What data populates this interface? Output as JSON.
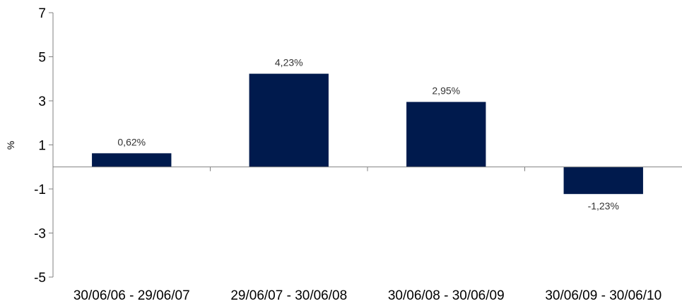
{
  "chart_data": {
    "type": "bar",
    "categories": [
      "30/06/06 - 29/06/07",
      "29/06/07 - 30/06/08",
      "30/06/08 - 30/06/09",
      "30/06/09 - 30/06/10"
    ],
    "values": [
      0.62,
      4.23,
      2.95,
      -1.23
    ],
    "data_labels": [
      "0,62%",
      "4,23%",
      "2,95%",
      "-1,23%"
    ],
    "title": "",
    "xlabel": "",
    "ylabel": "%",
    "ylim": [
      -5,
      7
    ],
    "yticks": [
      7,
      5,
      3,
      1,
      -1,
      -3,
      -5
    ],
    "grid": false,
    "legend": "none",
    "bar_color": "#001A4D"
  }
}
